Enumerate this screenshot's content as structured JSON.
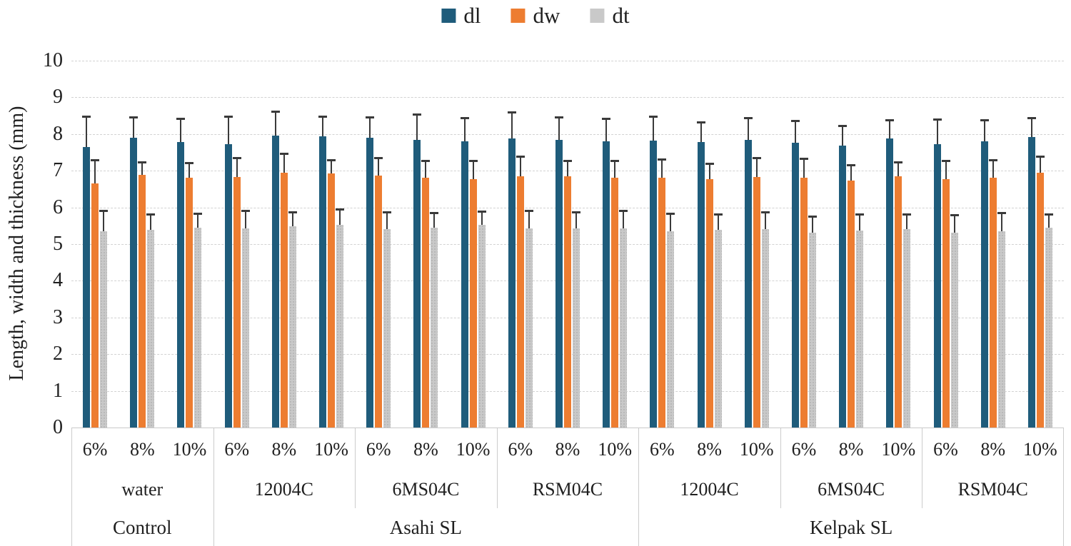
{
  "legend": {
    "position": "top-center",
    "items": [
      {
        "label": "dl",
        "color": "#1F5C7B"
      },
      {
        "label": "dw",
        "color": "#ED7D31"
      },
      {
        "label": "dt",
        "color": "#C9C9C9"
      }
    ]
  },
  "y_axis": {
    "title": "Length, width and thickness (mm)",
    "min": 0,
    "max": 10,
    "step": 1,
    "tick_labels": [
      "0",
      "1",
      "2",
      "3",
      "4",
      "5",
      "6",
      "7",
      "8",
      "9",
      "10"
    ]
  },
  "chart_data": {
    "type": "bar",
    "title": "",
    "xlabel": "",
    "ylabel": "Length, width and thickness (mm)",
    "ylim": [
      0,
      10
    ],
    "grid": "horizontal-dashed",
    "legend_position": "top",
    "series_names": [
      "dl",
      "dw",
      "dt"
    ],
    "series_colors": {
      "dl": "#1F5C7B",
      "dw": "#ED7D31",
      "dt": "#C9C9C9"
    },
    "error_bars": "upper-only",
    "groups": [
      {
        "group": "Control",
        "treatment": "water",
        "concentration": "6%",
        "dl": 7.65,
        "dw": 6.65,
        "dt": 5.35,
        "dl_err": 0.82,
        "dw_err": 0.63,
        "dt_err": 0.55
      },
      {
        "group": "Control",
        "treatment": "water",
        "concentration": "8%",
        "dl": 7.9,
        "dw": 6.88,
        "dt": 5.38,
        "dl_err": 0.54,
        "dw_err": 0.33,
        "dt_err": 0.42
      },
      {
        "group": "Control",
        "treatment": "water",
        "concentration": "10%",
        "dl": 7.78,
        "dw": 6.8,
        "dt": 5.45,
        "dl_err": 0.62,
        "dw_err": 0.4,
        "dt_err": 0.37
      },
      {
        "group": "Asahi SL",
        "treatment": "12004C",
        "concentration": "6%",
        "dl": 7.72,
        "dw": 6.82,
        "dt": 5.42,
        "dl_err": 0.75,
        "dw_err": 0.51,
        "dt_err": 0.47
      },
      {
        "group": "Asahi SL",
        "treatment": "12004C",
        "concentration": "8%",
        "dl": 7.95,
        "dw": 6.95,
        "dt": 5.48,
        "dl_err": 0.65,
        "dw_err": 0.5,
        "dt_err": 0.37
      },
      {
        "group": "Asahi SL",
        "treatment": "12004C",
        "concentration": "10%",
        "dl": 7.93,
        "dw": 6.92,
        "dt": 5.52,
        "dl_err": 0.54,
        "dw_err": 0.36,
        "dt_err": 0.42
      },
      {
        "group": "Asahi SL",
        "treatment": "6MS04C",
        "concentration": "6%",
        "dl": 7.89,
        "dw": 6.86,
        "dt": 5.4,
        "dl_err": 0.56,
        "dw_err": 0.48,
        "dt_err": 0.45
      },
      {
        "group": "Asahi SL",
        "treatment": "6MS04C",
        "concentration": "8%",
        "dl": 7.84,
        "dw": 6.8,
        "dt": 5.45,
        "dl_err": 0.69,
        "dw_err": 0.45,
        "dt_err": 0.38
      },
      {
        "group": "Asahi SL",
        "treatment": "6MS04C",
        "concentration": "10%",
        "dl": 7.81,
        "dw": 6.78,
        "dt": 5.52,
        "dl_err": 0.61,
        "dw_err": 0.47,
        "dt_err": 0.35
      },
      {
        "group": "Asahi SL",
        "treatment": "RSM04C",
        "concentration": "6%",
        "dl": 7.87,
        "dw": 6.84,
        "dt": 5.42,
        "dl_err": 0.71,
        "dw_err": 0.53,
        "dt_err": 0.47
      },
      {
        "group": "Asahi SL",
        "treatment": "RSM04C",
        "concentration": "8%",
        "dl": 7.84,
        "dw": 6.84,
        "dt": 5.42,
        "dl_err": 0.61,
        "dw_err": 0.42,
        "dt_err": 0.43
      },
      {
        "group": "Asahi SL",
        "treatment": "RSM04C",
        "concentration": "10%",
        "dl": 7.81,
        "dw": 6.8,
        "dt": 5.43,
        "dl_err": 0.59,
        "dw_err": 0.46,
        "dt_err": 0.47
      },
      {
        "group": "Kelpak SL",
        "treatment": "12004C",
        "concentration": "6%",
        "dl": 7.82,
        "dw": 6.81,
        "dt": 5.36,
        "dl_err": 0.65,
        "dw_err": 0.48,
        "dt_err": 0.46
      },
      {
        "group": "Kelpak SL",
        "treatment": "12004C",
        "concentration": "8%",
        "dl": 7.78,
        "dw": 6.77,
        "dt": 5.38,
        "dl_err": 0.52,
        "dw_err": 0.4,
        "dt_err": 0.41
      },
      {
        "group": "Kelpak SL",
        "treatment": "12004C",
        "concentration": "10%",
        "dl": 7.85,
        "dw": 6.83,
        "dt": 5.4,
        "dl_err": 0.57,
        "dw_err": 0.5,
        "dt_err": 0.45
      },
      {
        "group": "Kelpak SL",
        "treatment": "6MS04C",
        "concentration": "6%",
        "dl": 7.77,
        "dw": 6.8,
        "dt": 5.32,
        "dl_err": 0.57,
        "dw_err": 0.52,
        "dt_err": 0.41
      },
      {
        "group": "Kelpak SL",
        "treatment": "6MS04C",
        "concentration": "8%",
        "dl": 7.68,
        "dw": 6.73,
        "dt": 5.37,
        "dl_err": 0.54,
        "dw_err": 0.42,
        "dt_err": 0.43
      },
      {
        "group": "Kelpak SL",
        "treatment": "6MS04C",
        "concentration": "10%",
        "dl": 7.88,
        "dw": 6.85,
        "dt": 5.4,
        "dl_err": 0.49,
        "dw_err": 0.36,
        "dt_err": 0.39
      },
      {
        "group": "Kelpak SL",
        "treatment": "RSM04C",
        "concentration": "6%",
        "dl": 7.73,
        "dw": 6.78,
        "dt": 5.32,
        "dl_err": 0.65,
        "dw_err": 0.47,
        "dt_err": 0.45
      },
      {
        "group": "Kelpak SL",
        "treatment": "RSM04C",
        "concentration": "8%",
        "dl": 7.8,
        "dw": 6.8,
        "dt": 5.35,
        "dl_err": 0.57,
        "dw_err": 0.48,
        "dt_err": 0.48
      },
      {
        "group": "Kelpak SL",
        "treatment": "RSM04C",
        "concentration": "10%",
        "dl": 7.92,
        "dw": 6.95,
        "dt": 5.45,
        "dl_err": 0.51,
        "dw_err": 0.42,
        "dt_err": 0.35
      }
    ],
    "axis_level2": [
      {
        "label": "water",
        "span": 3
      },
      {
        "label": "12004C",
        "span": 3
      },
      {
        "label": "6MS04C",
        "span": 3
      },
      {
        "label": "RSM04C",
        "span": 3
      },
      {
        "label": "12004C",
        "span": 3
      },
      {
        "label": "6MS04C",
        "span": 3
      },
      {
        "label": "RSM04C",
        "span": 3
      }
    ],
    "axis_level3": [
      {
        "label": "Control",
        "span": 3
      },
      {
        "label": "Asahi SL",
        "span": 9
      },
      {
        "label": "Kelpak SL",
        "span": 9
      }
    ]
  }
}
